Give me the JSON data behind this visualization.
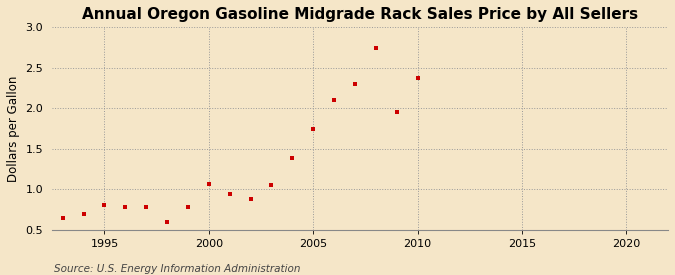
{
  "title": "Annual Oregon Gasoline Midgrade Rack Sales Price by All Sellers",
  "ylabel": "Dollars per Gallon",
  "source": "Source: U.S. Energy Information Administration",
  "years": [
    1993,
    1994,
    1995,
    1996,
    1997,
    1998,
    1999,
    2000,
    2001,
    2002,
    2003,
    2004,
    2005,
    2006,
    2007,
    2008,
    2009,
    2010
  ],
  "values": [
    0.65,
    0.7,
    0.8,
    0.78,
    0.78,
    0.6,
    0.78,
    1.06,
    0.94,
    0.88,
    1.05,
    1.38,
    1.75,
    2.1,
    2.3,
    2.75,
    1.96,
    2.37
  ],
  "marker_color": "#cc0000",
  "bg_color": "#f5e6c8",
  "plot_bg_color": "#f5e6c8",
  "grid_color": "#999999",
  "ylim": [
    0.5,
    3.0
  ],
  "xlim": [
    1992.5,
    2022
  ],
  "xticks": [
    1995,
    2000,
    2005,
    2010,
    2015,
    2020
  ],
  "yticks": [
    0.5,
    1.0,
    1.5,
    2.0,
    2.5,
    3.0
  ],
  "title_fontsize": 11,
  "label_fontsize": 8.5,
  "tick_fontsize": 8,
  "source_fontsize": 7.5
}
